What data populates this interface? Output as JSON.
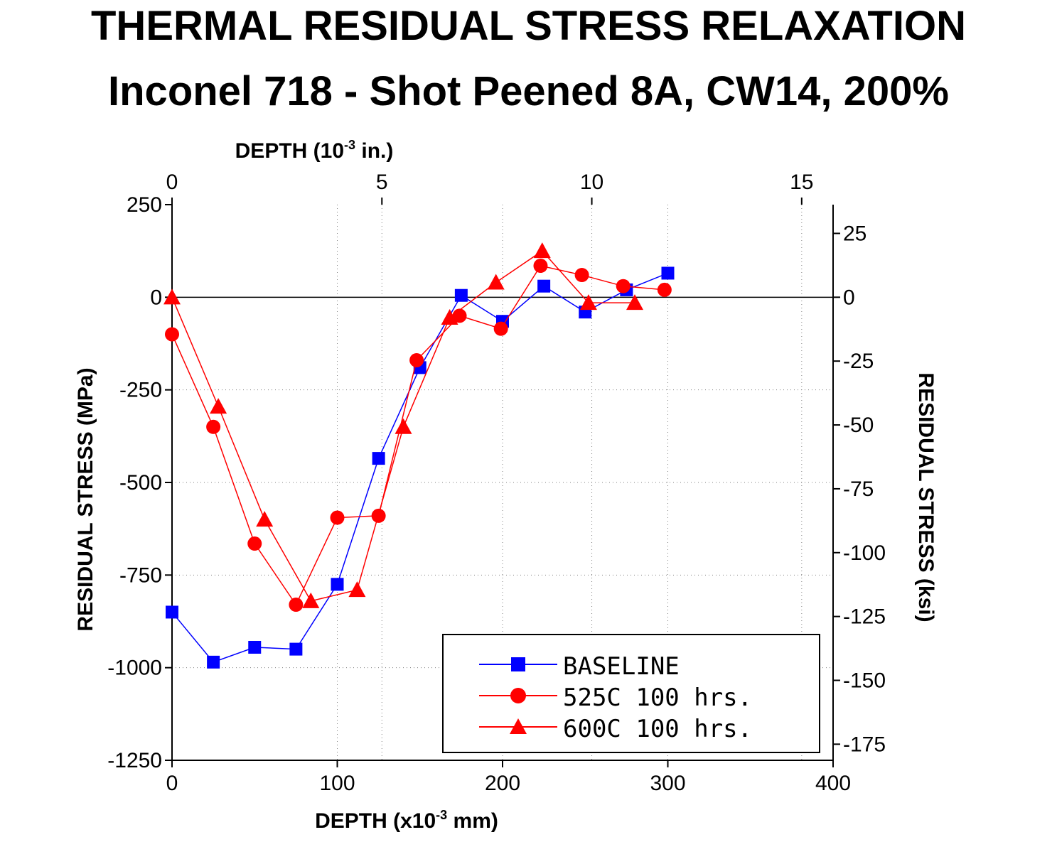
{
  "title_line1": "THERMAL RESIDUAL STRESS RELAXATION",
  "title_line2": "Inconel 718 - Shot Peened 8A, CW14, 200%",
  "chart_data": {
    "type": "line",
    "title": "THERMAL RESIDUAL STRESS RELAXATION Inconel 718 - Shot Peened 8A, CW14, 200%",
    "xlabel": "DEPTH (x10-3 mm)",
    "xlabel_parts": {
      "pre": "DEPTH (x10",
      "sup": "-3",
      "post": " mm)"
    },
    "x2label": "DEPTH (10-3 in.)",
    "x2label_parts": {
      "pre": "DEPTH (10",
      "sup": "-3",
      "post": " in.)"
    },
    "ylabel": "RESIDUAL STRESS (MPa)",
    "y2label": "RESIDUAL STRESS (ksi)",
    "xlim": [
      0,
      400
    ],
    "ylim": [
      -1250,
      250
    ],
    "x2lim": [
      0,
      15.748
    ],
    "y2lim": [
      -181.3,
      36.26
    ],
    "xticks": [
      "0",
      "100",
      "200",
      "300",
      "400"
    ],
    "yticks": [
      "250",
      "0",
      "-250",
      "-500",
      "-750",
      "-1000",
      "-1250"
    ],
    "x2ticks": [
      "0",
      "5",
      "10",
      "15"
    ],
    "y2ticks": [
      "25",
      "0",
      "-25",
      "-50",
      "-75",
      "-100",
      "-125",
      "-150",
      "-175"
    ],
    "grid": true,
    "legend_position": "lower-right",
    "series": [
      {
        "name": "BASELINE",
        "color": "#0000ff",
        "marker": "square",
        "x": [
          0,
          25,
          50,
          75,
          100,
          125,
          150,
          175,
          200,
          225,
          250,
          275,
          300
        ],
        "y": [
          -850,
          -985,
          -945,
          -950,
          -775,
          -435,
          -190,
          5,
          -65,
          30,
          -40,
          20,
          65
        ]
      },
      {
        "name": "525C 100 hrs.",
        "color": "#ff0000",
        "marker": "circle",
        "x": [
          0,
          25,
          50,
          75,
          100,
          125,
          148,
          174,
          199,
          223,
          248,
          273,
          298
        ],
        "y": [
          -100,
          -350,
          -665,
          -830,
          -595,
          -590,
          -170,
          -50,
          -85,
          85,
          60,
          30,
          20
        ]
      },
      {
        "name": "600C 100 hrs.",
        "color": "#ff0000",
        "marker": "triangle",
        "x": [
          0,
          28,
          56,
          84,
          112,
          140,
          168,
          196,
          224,
          252,
          280
        ],
        "y": [
          0,
          -295,
          -600,
          -820,
          -790,
          -350,
          -55,
          40,
          125,
          -15,
          -15
        ]
      }
    ]
  }
}
